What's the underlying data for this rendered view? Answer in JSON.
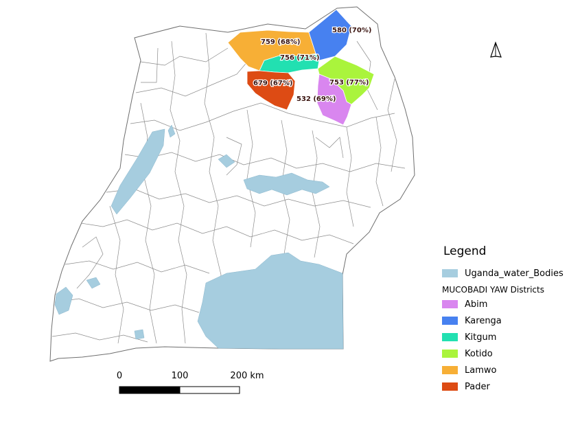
{
  "colors": {
    "water": "#a6cddf",
    "land": "#ffffff",
    "border": "#777777",
    "Abim": "#d986ef",
    "Karenga": "#4781f0",
    "Kitgum": "#22e0b1",
    "Kotido": "#aaf43c",
    "Lamwo": "#f7af36",
    "Pader": "#dd4b14"
  },
  "districts": [
    {
      "name": "Lamwo",
      "label": "759 (68%)"
    },
    {
      "name": "Karenga",
      "label": "580 (70%)"
    },
    {
      "name": "Kitgum",
      "label": "756 (71%)"
    },
    {
      "name": "Pader",
      "label": "679 (67%)"
    },
    {
      "name": "Kotido",
      "label": "753 (77%)"
    },
    {
      "name": "Abim",
      "label": "532 (69%)"
    }
  ],
  "north_arrow": {
    "icon": "north-arrow-icon"
  },
  "scale_bar": {
    "ticks": [
      "0",
      "100",
      "200 km"
    ]
  },
  "legend": {
    "title": "Legend",
    "water_label": "Uganda_water_Bodies",
    "group_title": "MUCOBADI YAW Districts",
    "items": [
      {
        "label": "Abim",
        "color": "#d986ef"
      },
      {
        "label": "Karenga",
        "color": "#4781f0"
      },
      {
        "label": "Kitgum",
        "color": "#22e0b1"
      },
      {
        "label": "Kotido",
        "color": "#aaf43c"
      },
      {
        "label": "Lamwo",
        "color": "#f7af36"
      },
      {
        "label": "Pader",
        "color": "#dd4b14"
      }
    ]
  }
}
